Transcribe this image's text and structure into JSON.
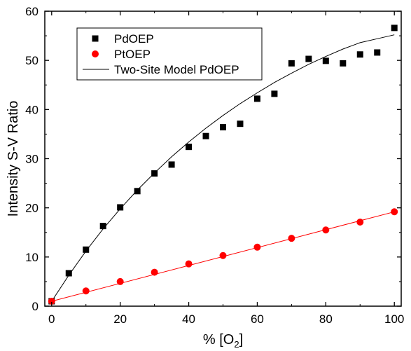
{
  "chart_data": {
    "type": "scatter",
    "title": "",
    "xlabel": "% [O",
    "xlabel_sub": "2",
    "xlabel_close": "]",
    "ylabel": "Intensity S-V Ratio",
    "xlim": [
      -2,
      102
    ],
    "ylim": [
      0,
      60
    ],
    "xticks": [
      0,
      20,
      40,
      60,
      80,
      100
    ],
    "yticks": [
      0,
      10,
      20,
      30,
      40,
      50,
      60
    ],
    "xtick_labels": [
      "0",
      "20",
      "40",
      "60",
      "80",
      "100"
    ],
    "ytick_labels": [
      "0",
      "10",
      "20",
      "30",
      "40",
      "50",
      "60"
    ],
    "legend_position": "top-left",
    "grid": false,
    "series": [
      {
        "name": "PdOEP",
        "kind": "scatter",
        "marker": "square",
        "color": "#000000",
        "x": [
          0,
          5,
          10,
          15,
          20,
          25,
          30,
          35,
          40,
          45,
          50,
          55,
          60,
          65,
          70,
          75,
          80,
          85,
          90,
          95,
          100
        ],
        "y": [
          1.0,
          6.7,
          11.5,
          16.3,
          20.1,
          23.4,
          27.0,
          28.8,
          32.4,
          34.6,
          36.4,
          37.1,
          42.2,
          43.2,
          49.4,
          50.3,
          49.9,
          49.4,
          51.2,
          51.6,
          56.6
        ]
      },
      {
        "name": "PtOEP",
        "kind": "scatter",
        "marker": "circle",
        "color": "#ff0000",
        "x": [
          0,
          10,
          20,
          30,
          40,
          50,
          60,
          70,
          80,
          90,
          100
        ],
        "y": [
          1.0,
          3.1,
          5.0,
          6.9,
          8.6,
          10.3,
          12.0,
          13.8,
          15.5,
          17.1,
          19.2
        ]
      },
      {
        "name": "Two-Site Model PdOEP",
        "kind": "line",
        "color": "#000000",
        "x": [
          0,
          5,
          10,
          15,
          20,
          25,
          30,
          35,
          40,
          45,
          50,
          55,
          60,
          65,
          70,
          75,
          80,
          85,
          90,
          95,
          100
        ],
        "y": [
          1.0,
          6.3,
          11.2,
          15.7,
          19.8,
          23.6,
          27.1,
          30.4,
          33.4,
          36.2,
          38.8,
          41.2,
          43.4,
          45.5,
          47.4,
          49.2,
          50.8,
          52.3,
          53.6,
          54.4,
          55.2
        ]
      },
      {
        "kind": "line",
        "color": "#ff0000",
        "x": [
          0,
          100
        ],
        "y": [
          1.0,
          19.2
        ]
      }
    ]
  }
}
